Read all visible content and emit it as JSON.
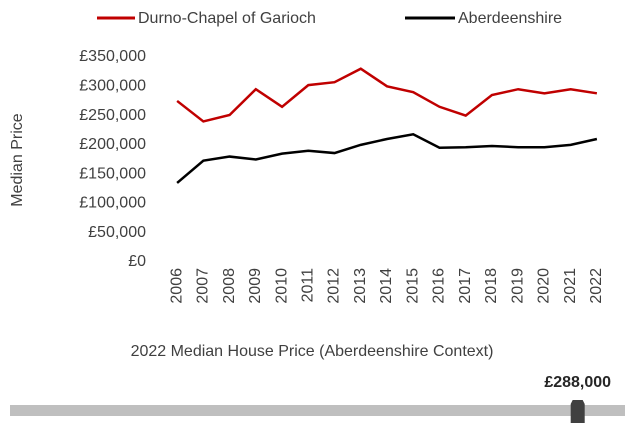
{
  "chart_data": {
    "type": "line",
    "y_label": "Median Price",
    "categories": [
      "2006",
      "2007",
      "2008",
      "2009",
      "2010",
      "2011",
      "2012",
      "2013",
      "2014",
      "2015",
      "2016",
      "2017",
      "2018",
      "2019",
      "2020",
      "2021",
      "2022"
    ],
    "series": [
      {
        "name": "Durno-Chapel of Garioch",
        "color": "#c00000",
        "values": [
          275000,
          240000,
          251000,
          295000,
          265000,
          302000,
          307000,
          330000,
          300000,
          290000,
          265000,
          250000,
          285000,
          295000,
          288000,
          295000,
          288000
        ]
      },
      {
        "name": "Aberdeenshire",
        "color": "#000000",
        "values": [
          135000,
          173000,
          180000,
          175000,
          185000,
          190000,
          186000,
          200000,
          210000,
          218000,
          195000,
          196000,
          198000,
          196000,
          196000,
          200000,
          210000
        ]
      }
    ],
    "ylim": [
      0,
      350000
    ],
    "yticks": [
      {
        "value": 0,
        "label": "£0"
      },
      {
        "value": 50000,
        "label": "£50,000"
      },
      {
        "value": 100000,
        "label": "£100,000"
      },
      {
        "value": 150000,
        "label": "£150,000"
      },
      {
        "value": 200000,
        "label": "£200,000"
      },
      {
        "value": 250000,
        "label": "£250,000"
      },
      {
        "value": 300000,
        "label": "£300,000"
      },
      {
        "value": 350000,
        "label": "£350,000"
      }
    ],
    "legend": "top",
    "grid": false
  },
  "slider": {
    "title": "2022 Median House Price (Aberdeenshire Context)",
    "value": 288000,
    "value_label": "£288,000",
    "xlim": [
      0,
      312000
    ],
    "color": "#bfbfbf",
    "marker_color": "#404040"
  }
}
